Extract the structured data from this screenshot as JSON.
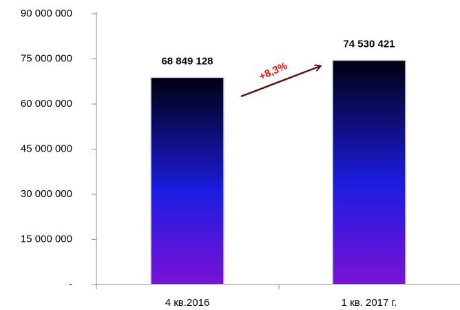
{
  "chart_data": {
    "type": "bar",
    "categories": [
      "4 кв.2016",
      "1 кв. 2017 г."
    ],
    "values": [
      68849128,
      74530421
    ],
    "value_labels": [
      "68 849 128",
      "74 530 421"
    ],
    "colors": [
      "#000010",
      "#1c1ce0",
      "#7a12d6"
    ],
    "ylim": [
      0,
      90000000
    ],
    "yticks": [
      {
        "value": 0,
        "label": "-"
      },
      {
        "value": 15000000,
        "label": "15 000 000"
      },
      {
        "value": 30000000,
        "label": "30 000 000"
      },
      {
        "value": 45000000,
        "label": "45 000 000"
      },
      {
        "value": 60000000,
        "label": "60 000 000"
      },
      {
        "value": 75000000,
        "label": "75 000 000"
      },
      {
        "value": 90000000,
        "label": "90 000 000"
      }
    ],
    "annotation": "+8,3%",
    "grid": false
  }
}
